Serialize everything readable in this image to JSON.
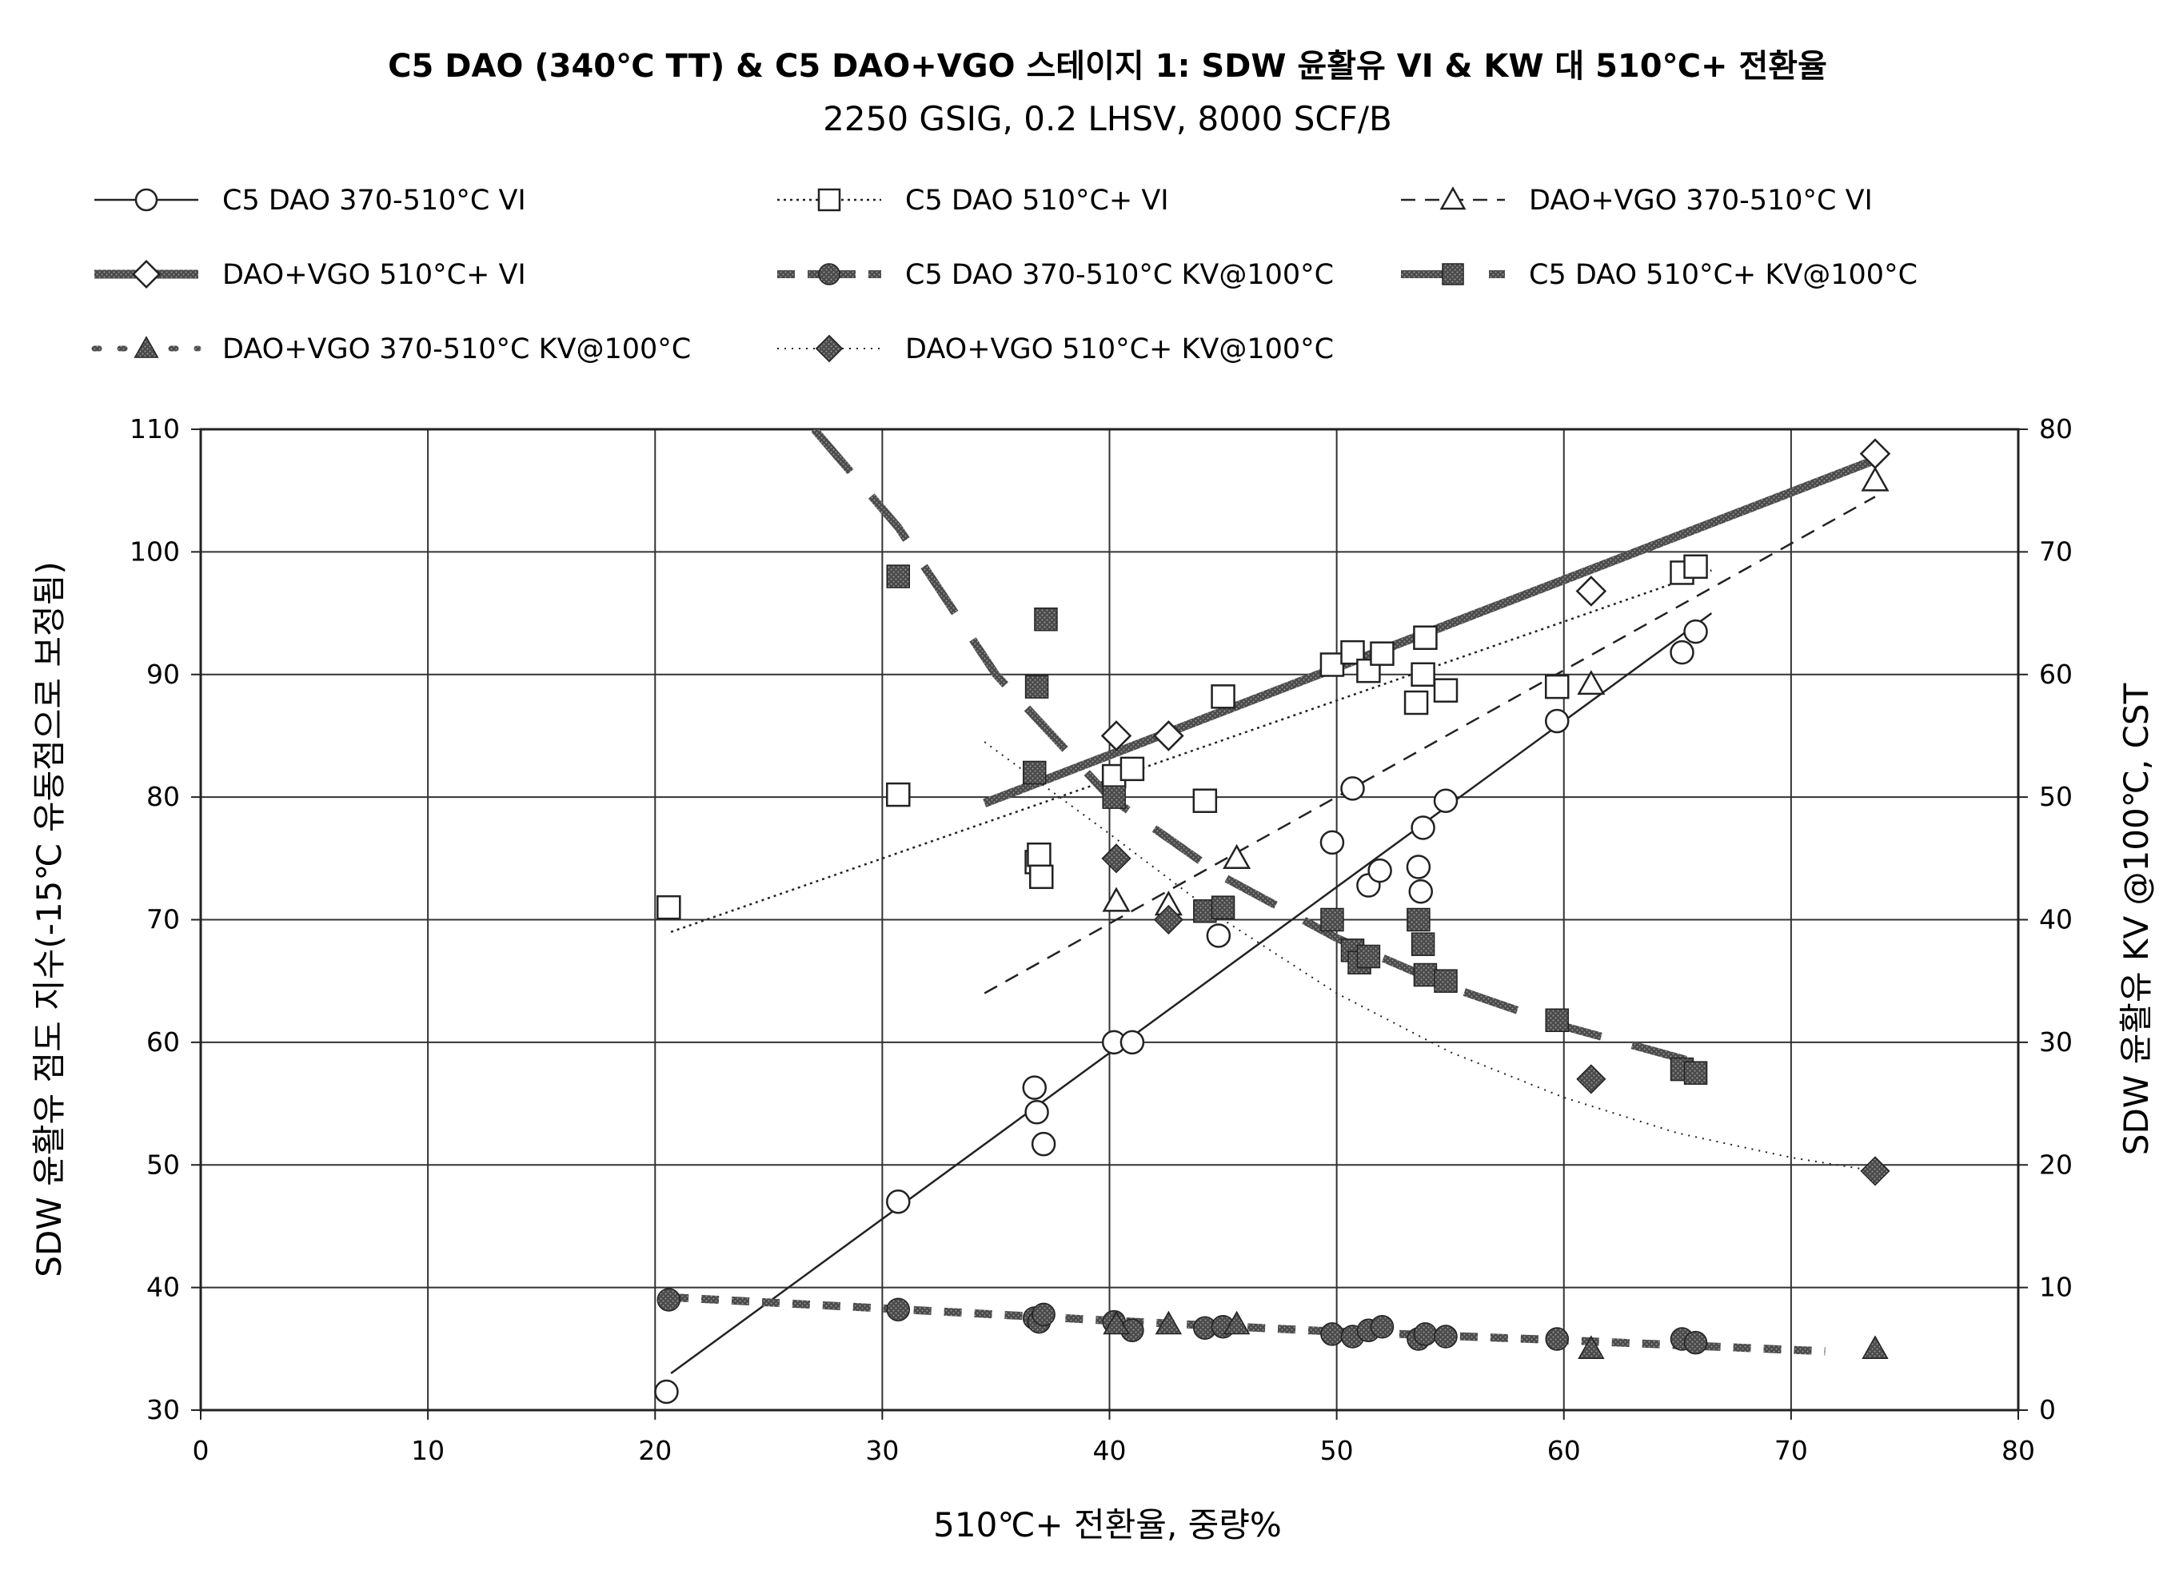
{
  "chart_data": {
    "type": "scatter",
    "title": "C5 DAO (340℃ TT) & C5 DAO+VGO 스테이지 1: SDW 윤활유 VI & KW 대 510℃+ 전환율",
    "subtitle": "2250 GSIG, 0.2 LHSV, 8000 SCF/B",
    "xlabel": "510℃+ 전환율, 중량%",
    "ylabel_left": "SDW 윤활유 점도 지수(-15℃ 유동점으로 보정됨)",
    "ylabel_right": "SDW 윤활유 KV @100℃, CST",
    "xlim": [
      0,
      80
    ],
    "ylim_left": [
      30,
      110
    ],
    "ylim_right": [
      0,
      80
    ],
    "x_ticks": [
      "0",
      "10",
      "20",
      "30",
      "40",
      "50",
      "60",
      "70",
      "80"
    ],
    "y_left_ticks": [
      "30",
      "40",
      "50",
      "60",
      "70",
      "80",
      "90",
      "100",
      "110"
    ],
    "y_right_ticks": [
      "0",
      "10",
      "20",
      "30",
      "40",
      "50",
      "60",
      "70",
      "80"
    ],
    "grid": true,
    "legend_position": "top",
    "series": [
      {
        "name": "C5 DAO 370-510°C VI",
        "axis": "left",
        "marker": "circle-open",
        "line": "solid-thin",
        "x": [
          20.5,
          30.7,
          36.7,
          36.8,
          37.1,
          40.2,
          41.0,
          44.8,
          49.8,
          50.7,
          51.4,
          51.9,
          53.6,
          53.7,
          53.8,
          54.8,
          59.7,
          65.2,
          65.8
        ],
        "y": [
          31.5,
          47,
          56.3,
          54.3,
          51.7,
          60,
          60,
          68.7,
          76.3,
          80.7,
          72.8,
          74,
          74.3,
          72.3,
          77.5,
          79.7,
          86.2,
          91.8,
          93.5
        ],
        "trend": [
          [
            20.7,
            33
          ],
          [
            66.5,
            95
          ]
        ]
      },
      {
        "name": "C5 DAO 510°C+ VI",
        "axis": "left",
        "marker": "square-open",
        "line": "dotted",
        "x": [
          20.6,
          30.7,
          36.8,
          36.9,
          37.0,
          40.2,
          41.0,
          44.2,
          45.0,
          49.8,
          50.7,
          51.4,
          52.0,
          53.5,
          53.8,
          53.9,
          54.8,
          59.7,
          65.2,
          65.8
        ],
        "y": [
          71,
          80.2,
          74.7,
          75.3,
          73.5,
          81.7,
          82.3,
          79.7,
          88.2,
          90.8,
          91.8,
          90.3,
          91.7,
          87.7,
          90,
          93,
          88.7,
          89,
          98.3,
          98.8
        ],
        "trend": [
          [
            20.7,
            69
          ],
          [
            66.5,
            98.5
          ]
        ]
      },
      {
        "name": "DAO+VGO 370-510°C VI",
        "axis": "left",
        "marker": "triangle-open",
        "line": "dashed",
        "x": [
          40.3,
          42.6,
          45.6,
          61.2,
          73.7
        ],
        "y": [
          71.5,
          71.2,
          75,
          89.2,
          105.8
        ],
        "trend": [
          [
            34.5,
            64
          ],
          [
            73.7,
            104.5
          ]
        ]
      },
      {
        "name": "DAO+VGO 510°C+ VI",
        "axis": "left",
        "marker": "diamond-open",
        "line": "thick-solid",
        "x": [
          40.3,
          42.6,
          61.2,
          73.7
        ],
        "y": [
          85,
          85,
          96.8,
          108
        ],
        "trend": [
          [
            34.5,
            79.5
          ],
          [
            73.7,
            107.5
          ]
        ]
      },
      {
        "name": "C5 DAO 370-510°C KV@100°C",
        "axis": "right",
        "marker": "circle-filled",
        "line": "thick-dashed",
        "x": [
          20.6,
          30.7,
          36.7,
          36.9,
          37.1,
          40.2,
          41.0,
          44.2,
          45.0,
          49.8,
          50.7,
          51.4,
          52.0,
          53.6,
          53.9,
          54.8,
          59.7,
          65.2,
          65.8
        ],
        "y": [
          9,
          8.2,
          7.5,
          7.2,
          7.8,
          7.2,
          6.5,
          6.7,
          6.8,
          6.2,
          6,
          6.5,
          6.8,
          5.8,
          6.2,
          6,
          5.8,
          5.8,
          5.5
        ],
        "trend": [
          [
            20.7,
            9.2
          ],
          [
            30,
            8.3
          ],
          [
            40,
            7.3
          ],
          [
            50,
            6.4
          ],
          [
            60,
            5.7
          ],
          [
            71.5,
            4.8
          ]
        ]
      },
      {
        "name": "C5 DAO 510°C+ KV@100°C",
        "axis": "right",
        "marker": "square-filled",
        "line": "thick-long-dash",
        "x": [
          30.7,
          36.7,
          36.8,
          37.2,
          40.2,
          44.2,
          45.0,
          49.8,
          50.7,
          51.0,
          51.4,
          53.6,
          53.8,
          53.9,
          54.8,
          59.7,
          65.2,
          65.8
        ],
        "y": [
          68,
          52,
          59,
          64.5,
          50,
          40.7,
          41,
          40,
          37.5,
          36.5,
          37,
          40,
          38,
          35.5,
          35,
          31.8,
          27.8,
          27.5
        ],
        "trend": [
          [
            27.0,
            80
          ],
          [
            30.7,
            72
          ],
          [
            35.0,
            60
          ],
          [
            40.0,
            50
          ],
          [
            45.0,
            43.5
          ],
          [
            50.0,
            38.5
          ],
          [
            55.0,
            34.5
          ],
          [
            60.0,
            31.3
          ],
          [
            66.5,
            28
          ]
        ]
      },
      {
        "name": "DAO+VGO 370-510°C KV@100°C",
        "axis": "right",
        "marker": "triangle-filled",
        "line": "thick-dotted",
        "x": [
          40.3,
          42.6,
          45.6,
          61.2,
          73.7
        ],
        "y": [
          7,
          7,
          7,
          5,
          5
        ],
        "trend": []
      },
      {
        "name": "DAO+VGO 510°C+ KV@100°C",
        "axis": "right",
        "marker": "diamond-filled",
        "line": "dotted-thin",
        "x": [
          40.3,
          42.6,
          61.2,
          73.7
        ],
        "y": [
          45,
          40,
          27,
          19.5
        ],
        "trend": [
          [
            34.5,
            54.5
          ],
          [
            40.0,
            47
          ],
          [
            45.0,
            40
          ],
          [
            50.0,
            34
          ],
          [
            55.0,
            29.2
          ],
          [
            60.0,
            25.5
          ],
          [
            65.0,
            22.6
          ],
          [
            70.0,
            20.6
          ],
          [
            73.7,
            19.5
          ]
        ]
      }
    ]
  }
}
